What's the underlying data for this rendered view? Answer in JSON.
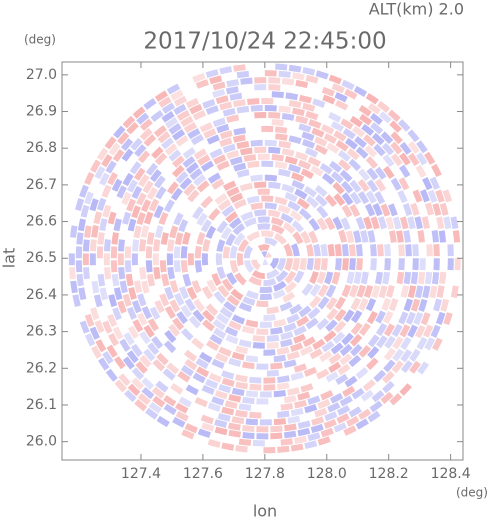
{
  "chart_data": {
    "type": "radar-ppi",
    "title": "2017/10/24 22:45:00",
    "altitude_label": "ALT(km) 2.0",
    "x_label": "lon",
    "y_label": "lat",
    "x_unit": "(deg)",
    "y_unit": "(deg)",
    "xlim": [
      127.145,
      128.44
    ],
    "ylim": [
      25.95,
      27.035
    ],
    "xticks": [
      127.4,
      127.6,
      127.8,
      {
        "value": 128,
        "label": "128.0"
      },
      128.2,
      128.4
    ],
    "yticks": [
      {
        "value": 26,
        "label": "26.0"
      },
      26.1,
      26.2,
      26.3,
      26.4,
      26.5,
      26.6,
      26.7,
      26.8,
      26.9,
      {
        "value": 27,
        "label": "27.0"
      }
    ],
    "center": [
      127.8,
      26.5
    ],
    "colors": [
      "#f7a8a8",
      "#aaaaf5"
    ]
  }
}
